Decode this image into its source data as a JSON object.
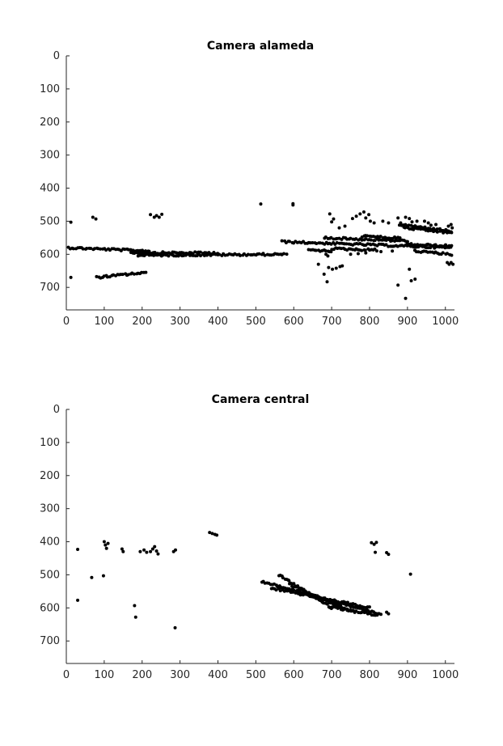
{
  "chart_data": [
    {
      "type": "scatter",
      "title": "Camera alameda",
      "xlabel": "",
      "ylabel": "",
      "xlim": [
        0,
        1024
      ],
      "ylim": [
        768,
        0
      ],
      "y_reversed": true,
      "grid": false,
      "xticks": [
        "0",
        "100",
        "200",
        "300",
        "400",
        "500",
        "600",
        "700",
        "800",
        "900",
        "1000"
      ],
      "yticks": [
        "0",
        "100",
        "200",
        "300",
        "400",
        "500",
        "600",
        "700"
      ],
      "points": [
        [
          12,
          503
        ],
        [
          12,
          670
        ],
        [
          70,
          488
        ],
        [
          78,
          493
        ],
        [
          222,
          480
        ],
        [
          232,
          488
        ],
        [
          238,
          483
        ],
        [
          245,
          488
        ],
        [
          252,
          479
        ],
        [
          513,
          448
        ],
        [
          598,
          447
        ],
        [
          598,
          451
        ],
        [
          695,
          478
        ],
        [
          700,
          502
        ],
        [
          705,
          493
        ],
        [
          720,
          520
        ],
        [
          735,
          515
        ],
        [
          755,
          492
        ],
        [
          765,
          485
        ],
        [
          775,
          478
        ],
        [
          785,
          472
        ],
        [
          790,
          490
        ],
        [
          798,
          480
        ],
        [
          802,
          500
        ],
        [
          812,
          505
        ],
        [
          835,
          500
        ],
        [
          850,
          505
        ],
        [
          875,
          490
        ],
        [
          882,
          505
        ],
        [
          895,
          488
        ],
        [
          905,
          492
        ],
        [
          912,
          502
        ],
        [
          925,
          500
        ],
        [
          945,
          500
        ],
        [
          955,
          505
        ],
        [
          962,
          512
        ],
        [
          975,
          510
        ],
        [
          1015,
          510
        ],
        [
          1018,
          520
        ],
        [
          1008,
          515
        ],
        [
          665,
          630
        ],
        [
          680,
          660
        ],
        [
          688,
          683
        ],
        [
          692,
          640
        ],
        [
          702,
          645
        ],
        [
          712,
          642
        ],
        [
          722,
          637
        ],
        [
          728,
          635
        ],
        [
          875,
          693
        ],
        [
          895,
          733
        ],
        [
          905,
          645
        ],
        [
          910,
          680
        ],
        [
          920,
          675
        ],
        [
          1005,
          625
        ],
        [
          1010,
          630
        ],
        [
          1015,
          625
        ],
        [
          1020,
          630
        ],
        [
          685,
          600
        ],
        [
          690,
          605
        ],
        [
          750,
          600
        ],
        [
          770,
          598
        ],
        [
          790,
          596
        ],
        [
          830,
          592
        ],
        [
          860,
          590
        ]
      ],
      "segments": [
        [
          [
            5,
            580
          ],
          [
            220,
            590
          ]
        ],
        [
          [
            170,
            595
          ],
          [
            400,
            596
          ]
        ],
        [
          [
            190,
            603
          ],
          [
            580,
            600
          ]
        ],
        [
          [
            80,
            670
          ],
          [
            210,
            655
          ]
        ],
        [
          [
            570,
            562
          ],
          [
            1015,
            580
          ]
        ],
        [
          [
            680,
            550
          ],
          [
            900,
            560
          ]
        ],
        [
          [
            780,
            545
          ],
          [
            880,
            552
          ]
        ],
        [
          [
            880,
            510
          ],
          [
            1015,
            530
          ]
        ],
        [
          [
            890,
            520
          ],
          [
            1015,
            535
          ]
        ],
        [
          [
            900,
            570
          ],
          [
            1015,
            575
          ]
        ],
        [
          [
            920,
            590
          ],
          [
            1015,
            600
          ]
        ],
        [
          [
            700,
            583
          ],
          [
            820,
            587
          ]
        ],
        [
          [
            640,
            585
          ],
          [
            700,
            592
          ]
        ]
      ]
    },
    {
      "type": "scatter",
      "title": "Camera central",
      "xlabel": "",
      "ylabel": "",
      "xlim": [
        0,
        1024
      ],
      "ylim": [
        768,
        0
      ],
      "y_reversed": true,
      "grid": false,
      "xticks": [
        "0",
        "100",
        "200",
        "300",
        "400",
        "500",
        "600",
        "700",
        "800",
        "900",
        "1000"
      ],
      "yticks": [
        "0",
        "100",
        "200",
        "300",
        "400",
        "500",
        "600",
        "700"
      ],
      "points": [
        [
          30,
          423
        ],
        [
          30,
          577
        ],
        [
          67,
          508
        ],
        [
          98,
          503
        ],
        [
          100,
          400
        ],
        [
          103,
          410
        ],
        [
          106,
          420
        ],
        [
          110,
          405
        ],
        [
          147,
          422
        ],
        [
          150,
          430
        ],
        [
          180,
          593
        ],
        [
          183,
          628
        ],
        [
          195,
          430
        ],
        [
          205,
          425
        ],
        [
          212,
          432
        ],
        [
          222,
          430
        ],
        [
          228,
          422
        ],
        [
          233,
          415
        ],
        [
          238,
          428
        ],
        [
          242,
          437
        ],
        [
          283,
          430
        ],
        [
          288,
          425
        ],
        [
          287,
          660
        ],
        [
          378,
          372
        ],
        [
          385,
          375
        ],
        [
          392,
          378
        ],
        [
          397,
          380
        ],
        [
          805,
          403
        ],
        [
          812,
          408
        ],
        [
          818,
          402
        ],
        [
          815,
          432
        ],
        [
          845,
          433
        ],
        [
          850,
          438
        ],
        [
          908,
          498
        ],
        [
          845,
          613
        ],
        [
          850,
          618
        ]
      ],
      "segments": [
        [
          [
            515,
            520
          ],
          [
            830,
            620
          ]
        ],
        [
          [
            540,
            540
          ],
          [
            800,
            600
          ]
        ],
        [
          [
            560,
            500
          ],
          [
            700,
            600
          ]
        ],
        [
          [
            590,
            530
          ],
          [
            720,
            595
          ]
        ],
        [
          [
            640,
            560
          ],
          [
            760,
            612
          ]
        ],
        [
          [
            700,
            598
          ],
          [
            820,
            622
          ]
        ]
      ]
    }
  ]
}
